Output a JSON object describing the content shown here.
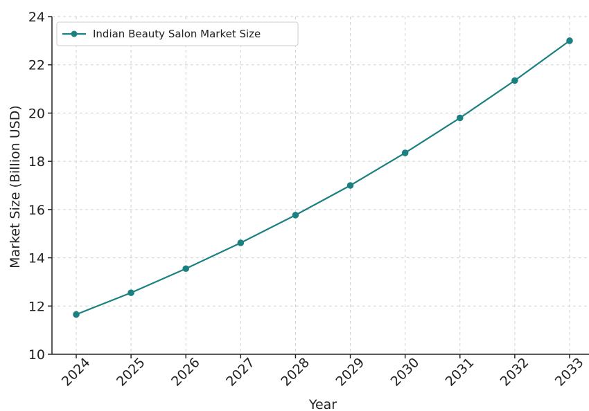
{
  "chart_data": {
    "type": "line",
    "categories": [
      "2024",
      "2025",
      "2026",
      "2027",
      "2028",
      "2029",
      "2030",
      "2031",
      "2032",
      "2033"
    ],
    "series": [
      {
        "name": "Indian Beauty Salon Market Size",
        "values": [
          11.65,
          12.55,
          13.55,
          14.62,
          15.77,
          17.0,
          18.35,
          19.8,
          21.35,
          23.0
        ],
        "color": "#1b8080"
      }
    ],
    "xlabel": "Year",
    "ylabel": "Market Size (Billion USD)",
    "ylim": [
      10,
      24
    ],
    "yticks": [
      10,
      12,
      14,
      16,
      18,
      20,
      22,
      24
    ],
    "grid": true,
    "legend_position": "top-left"
  }
}
